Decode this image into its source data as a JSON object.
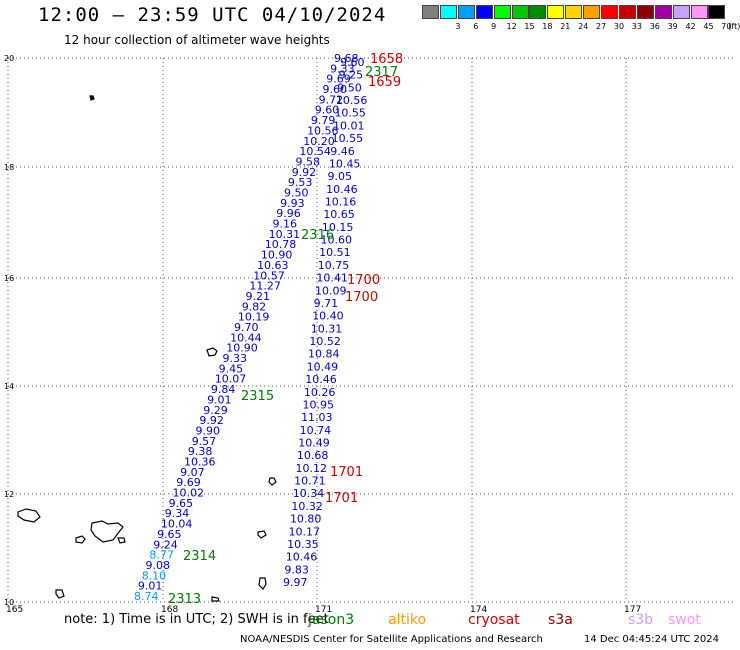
{
  "header": {
    "title": "12:00 – 23:59 UTC 04/10/2024",
    "subtitle": "12 hour collection of altimeter wave heights"
  },
  "legend": {
    "unit": "(ft)",
    "swatches": [
      {
        "color": "#808080",
        "label": ""
      },
      {
        "color": "#00ffff",
        "label": "3"
      },
      {
        "color": "#00a0ff",
        "label": "6"
      },
      {
        "color": "#0000ff",
        "label": "9"
      },
      {
        "color": "#00ff00",
        "label": "12"
      },
      {
        "color": "#00c800",
        "label": "15"
      },
      {
        "color": "#008c00",
        "label": "18"
      },
      {
        "color": "#ffff00",
        "label": "21"
      },
      {
        "color": "#ffd200",
        "label": "24"
      },
      {
        "color": "#ffa000",
        "label": "27"
      },
      {
        "color": "#ff0000",
        "label": "30"
      },
      {
        "color": "#c80000",
        "label": "33"
      },
      {
        "color": "#8c0000",
        "label": "36"
      },
      {
        "color": "#a000a0",
        "label": "39"
      },
      {
        "color": "#c8a0ff",
        "label": "42"
      },
      {
        "color": "#ff96ff",
        "label": "45"
      },
      {
        "color": "#000000",
        "label": "70"
      }
    ]
  },
  "axes": {
    "lon_labels": [
      "165",
      "168",
      "171",
      "174",
      "177"
    ],
    "lat_labels": [
      "20",
      "18",
      "16",
      "14",
      "12",
      "10"
    ]
  },
  "passes": [
    {
      "label": "1658",
      "color": "#cc0000"
    },
    {
      "label": "2317",
      "color": "#007a00"
    },
    {
      "label": "1659",
      "color": "#cc0000"
    },
    {
      "label": "2316",
      "color": "#007a00"
    },
    {
      "label": "1700",
      "color": "#cc0000"
    },
    {
      "label": "1700",
      "color": "#cc0000"
    },
    {
      "label": "2315",
      "color": "#007a00"
    },
    {
      "label": "1701",
      "color": "#cc0000"
    },
    {
      "label": "1701",
      "color": "#cc0000"
    },
    {
      "label": "2314",
      "color": "#007a00"
    },
    {
      "label": "2313",
      "color": "#007a00"
    }
  ],
  "track_a_values": [
    "9.68",
    "9.33",
    "9.69",
    "9.60",
    "9.72",
    "9.60",
    "9.79",
    "10.56",
    "10.20",
    "10.54",
    "9.58",
    "9.92",
    "9.53",
    "9.50",
    "9.93",
    "9.96",
    "9.16",
    "10.31",
    "10.78",
    "10.90",
    "10.63",
    "10.57",
    "11.27",
    "9.21",
    "9.82",
    "10.19",
    "9.70",
    "10.44",
    "10.90",
    "9.33",
    "9.45",
    "10.07",
    "9.84",
    "9.01",
    "9.29",
    "9.92",
    "9.90",
    "9.57",
    "9.38",
    "10.36",
    "9.07",
    "9.69",
    "10.02",
    "9.65",
    "9.34",
    "10.04",
    "9.65",
    "9.24",
    "8.77",
    "9.08",
    "8.10",
    "9.01",
    "8.74"
  ],
  "track_b_values": [
    "9.60",
    "9.25",
    "9.50",
    "10.56",
    "10.55",
    "10.01",
    "10.55",
    "9.46",
    "10.45",
    "9.05",
    "10.46",
    "10.16",
    "10.65",
    "10.15",
    "10.60",
    "10.51",
    "10.75",
    "10.41",
    "10.09",
    "9.71",
    "10.40",
    "10.31",
    "10.52",
    "10.84",
    "10.49",
    "10.46",
    "10.26",
    "10.95",
    "11.03",
    "10.74",
    "10.49",
    "10.68",
    "10.12",
    "10.71",
    "10.34",
    "10.32",
    "10.80",
    "10.17",
    "10.35",
    "10.46",
    "9.83",
    "9.97"
  ],
  "satellites": [
    {
      "label": "jason3",
      "color": "#007a00"
    },
    {
      "label": "altiko",
      "color": "#ff9900"
    },
    {
      "label": "cryosat",
      "color": "#cc0000"
    },
    {
      "label": "s3a",
      "color": "#8c0000"
    },
    {
      "label": "s3b",
      "color": "#c8a0ff"
    },
    {
      "label": "swot",
      "color": "#ff96ff"
    }
  ],
  "note": "note:  1) Time is in UTC;  2) SWH is in feet",
  "footer": {
    "credit": "NOAA/NESDIS Center for Satellite Applications and Research",
    "timestamp": "14 Dec 04:45:24 UTC 2024"
  },
  "colors": {
    "value_dark": "#0000cc",
    "value_light": "#0099ff"
  }
}
